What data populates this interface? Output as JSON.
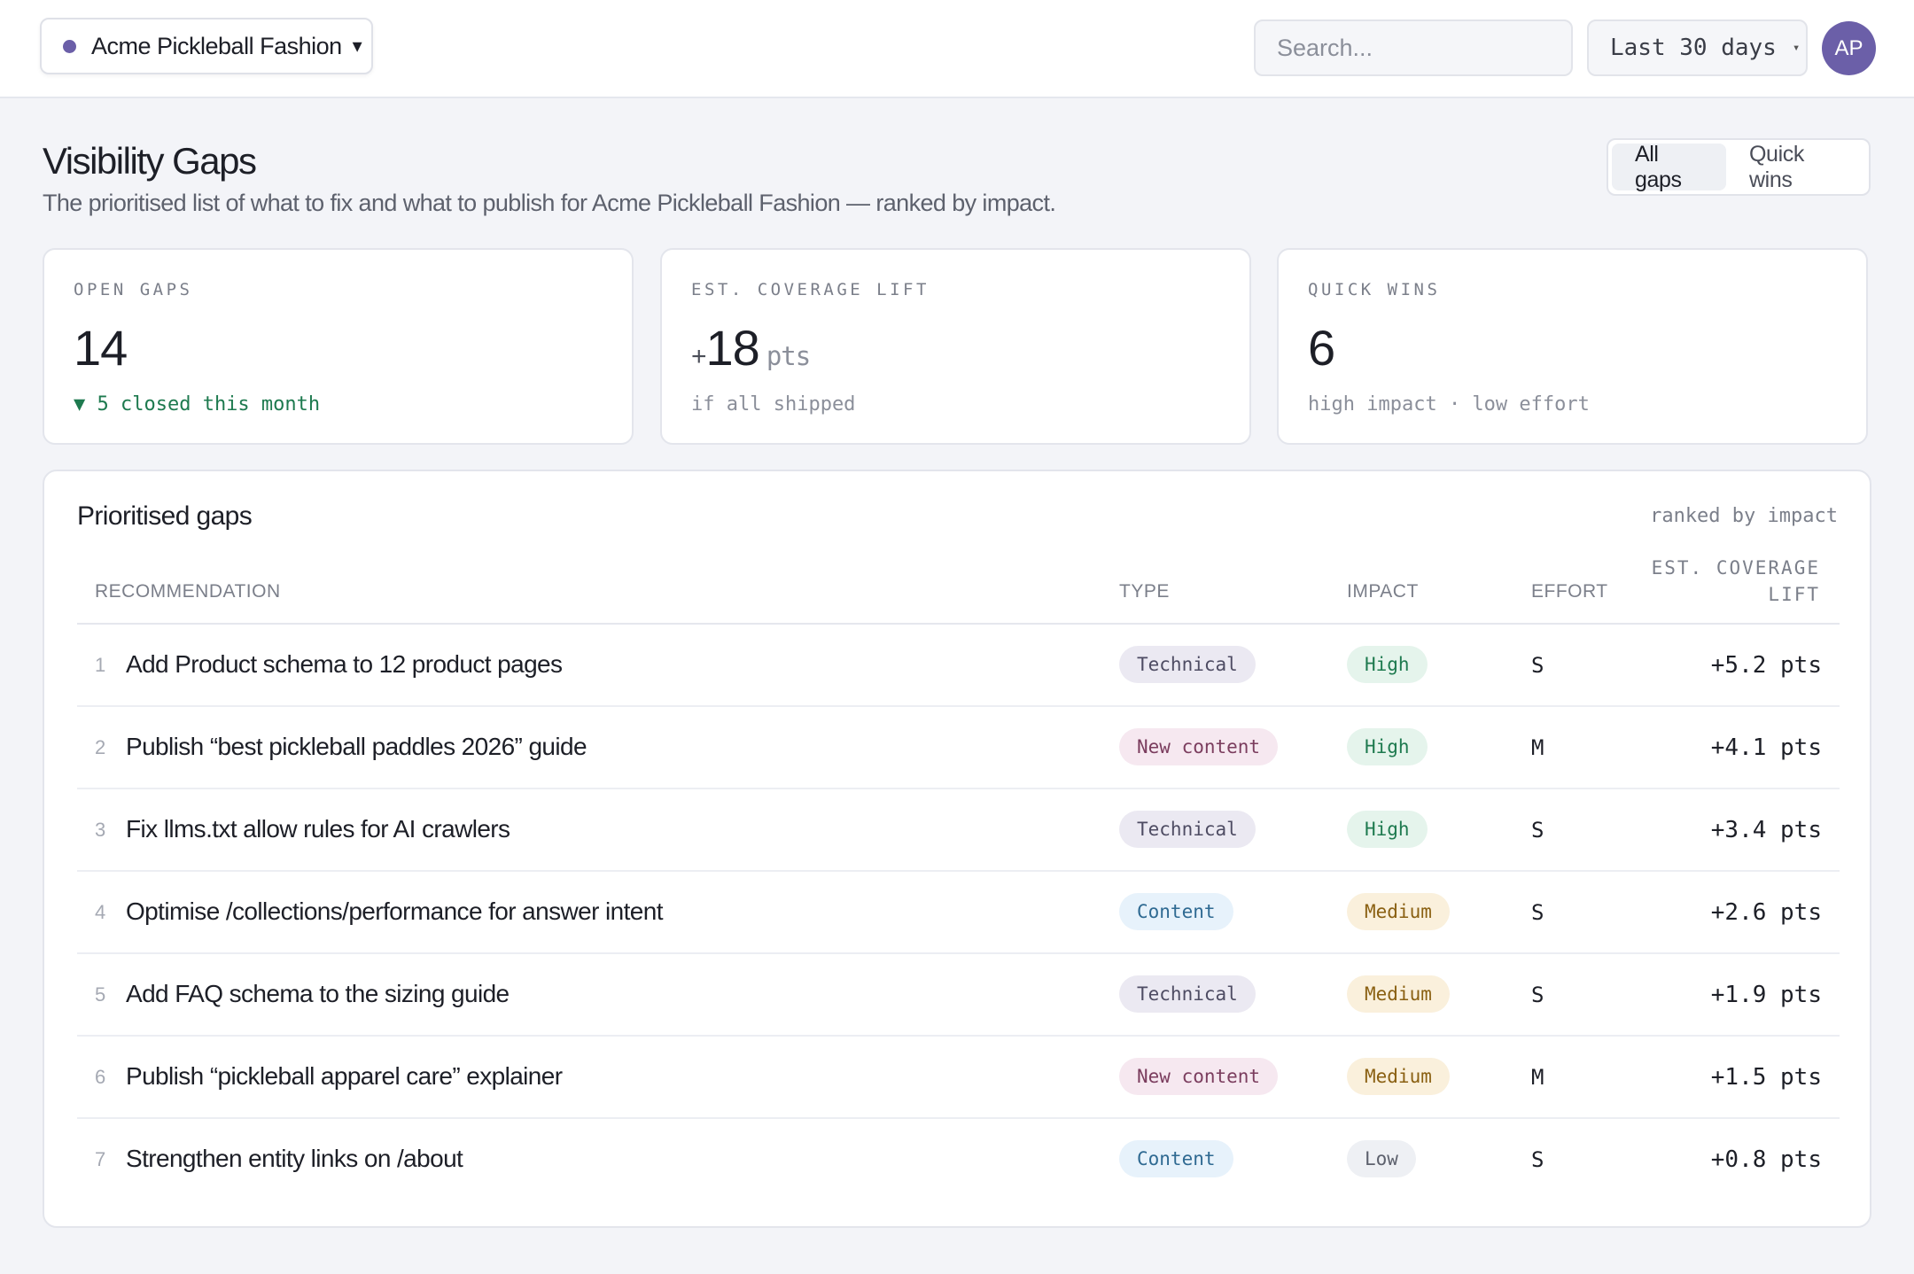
{
  "topbar": {
    "brand": "Acme Pickleball Fashion",
    "brand_caret": "▾",
    "search_placeholder": "Search...",
    "range": "Last 30 days",
    "range_caret": "▾",
    "avatar_initials": "AP"
  },
  "colors": {
    "accent": "#6b5fa8",
    "good": "#1e7a4f"
  },
  "header": {
    "title": "Visibility Gaps",
    "subtitle": "The prioritised list of what to fix and what to publish for Acme Pickleball Fashion — ranked by impact.",
    "tabs": [
      {
        "label": "All gaps",
        "active": true
      },
      {
        "label": "Quick wins",
        "active": false
      }
    ]
  },
  "kpis": [
    {
      "label": "OPEN GAPS",
      "prefix": "",
      "value": "14",
      "unit": "",
      "note": "▼ 5 closed this month"
    },
    {
      "label": "EST. COVERAGE LIFT",
      "prefix": "+",
      "value": "18",
      "unit": "pts",
      "note": "if all shipped"
    },
    {
      "label": "QUICK WINS",
      "prefix": "",
      "value": "6",
      "unit": "",
      "note": "high impact · low effort"
    }
  ],
  "table": {
    "title": "Prioritised gaps",
    "meta": "ranked by impact",
    "columns": {
      "recommendation": "RECOMMENDATION",
      "type": "TYPE",
      "impact": "IMPACT",
      "effort": "EFFORT",
      "lift_line1": "EST. COVERAGE",
      "lift_line2": "LIFT"
    },
    "rows": [
      {
        "rank": "1",
        "recommendation": "Add Product schema to 12 product pages",
        "type": "Technical",
        "impact": "High",
        "effort": "S",
        "lift": "+5.2 pts"
      },
      {
        "rank": "2",
        "recommendation": "Publish “best pickleball paddles 2026” guide",
        "type": "New content",
        "impact": "High",
        "effort": "M",
        "lift": "+4.1 pts"
      },
      {
        "rank": "3",
        "recommendation": "Fix llms.txt allow rules for AI crawlers",
        "type": "Technical",
        "impact": "High",
        "effort": "S",
        "lift": "+3.4 pts"
      },
      {
        "rank": "4",
        "recommendation": "Optimise /collections/performance for answer intent",
        "type": "Content",
        "impact": "Medium",
        "effort": "S",
        "lift": "+2.6 pts"
      },
      {
        "rank": "5",
        "recommendation": "Add FAQ schema to the sizing guide",
        "type": "Technical",
        "impact": "Medium",
        "effort": "S",
        "lift": "+1.9 pts"
      },
      {
        "rank": "6",
        "recommendation": "Publish “pickleball apparel care” explainer",
        "type": "New content",
        "impact": "Medium",
        "effort": "M",
        "lift": "+1.5 pts"
      },
      {
        "rank": "7",
        "recommendation": "Strengthen entity links on /about",
        "type": "Content",
        "impact": "Low",
        "effort": "S",
        "lift": "+0.8 pts"
      }
    ]
  }
}
